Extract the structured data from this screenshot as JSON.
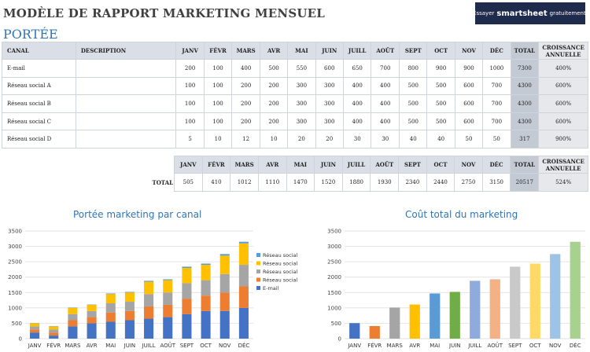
{
  "header": {
    "title": "MODÈLE DE RAPPORT MARKETING MENSUEL",
    "banner": {
      "prefix": "Essayer",
      "brand": "smartsheet",
      "suffix": "gratuitement."
    }
  },
  "section_title": "PORTÉE",
  "table": {
    "headers": [
      "CANAL",
      "DESCRIPTION",
      "JANV",
      "FÉVR",
      "MARS",
      "AVR",
      "MAI",
      "JUIN",
      "JUILL",
      "AOÛT",
      "SEPT",
      "OCT",
      "NOV",
      "DÉC",
      "TOTAL"
    ],
    "growth_header": [
      "CROISSANCE",
      "ANNUELLE"
    ],
    "rows": [
      {
        "channel": "E-mail",
        "description": "",
        "values": [
          "200",
          "100",
          "400",
          "500",
          "550",
          "600",
          "650",
          "700",
          "800",
          "900",
          "900",
          "1000"
        ],
        "total": "7300",
        "growth": "400%"
      },
      {
        "channel": "Réseau social A",
        "description": "",
        "values": [
          "100",
          "100",
          "200",
          "200",
          "300",
          "300",
          "400",
          "400",
          "500",
          "500",
          "600",
          "700"
        ],
        "total": "4300",
        "growth": "600%"
      },
      {
        "channel": "Réseau social B",
        "description": "",
        "values": [
          "100",
          "100",
          "200",
          "200",
          "300",
          "300",
          "400",
          "400",
          "500",
          "500",
          "600",
          "700"
        ],
        "total": "4300",
        "growth": "600%"
      },
      {
        "channel": "Réseau social C",
        "description": "",
        "values": [
          "100",
          "100",
          "200",
          "200",
          "300",
          "300",
          "400",
          "400",
          "500",
          "500",
          "600",
          "700"
        ],
        "total": "4300",
        "growth": "600%"
      },
      {
        "channel": "Réseau social D",
        "description": "",
        "values": [
          "5",
          "10",
          "12",
          "10",
          "20",
          "20",
          "30",
          "30",
          "40",
          "40",
          "50",
          "50"
        ],
        "total": "317",
        "growth": "900%"
      }
    ]
  },
  "totals": {
    "label": "TOTAL",
    "values": [
      "505",
      "410",
      "1012",
      "1110",
      "1470",
      "1520",
      "1880",
      "1930",
      "2340",
      "2440",
      "2750",
      "3150"
    ],
    "total": "20517",
    "growth": "524%"
  },
  "chart_data": [
    {
      "type": "bar",
      "stacked": true,
      "title": "Portée marketing par canal",
      "categories": [
        "JANV",
        "FÉVR",
        "MARS",
        "AVR",
        "MAI",
        "JUIN",
        "JUILL",
        "AOÛT",
        "SEPT",
        "OCT",
        "NOV",
        "DÉC"
      ],
      "series": [
        {
          "name": "E-mail",
          "color": "#4472c4",
          "values": [
            200,
            100,
            400,
            500,
            550,
            600,
            650,
            700,
            800,
            900,
            900,
            1000
          ]
        },
        {
          "name": "Réseau social A",
          "color": "#ed7d31",
          "values": [
            100,
            100,
            200,
            200,
            300,
            300,
            400,
            400,
            500,
            500,
            600,
            700
          ]
        },
        {
          "name": "Réseau social B",
          "color": "#a5a5a5",
          "values": [
            100,
            100,
            200,
            200,
            300,
            300,
            400,
            400,
            500,
            500,
            600,
            700
          ]
        },
        {
          "name": "Réseau social C",
          "color": "#ffc000",
          "values": [
            100,
            100,
            200,
            200,
            300,
            300,
            400,
            400,
            500,
            500,
            600,
            700
          ]
        },
        {
          "name": "Réseau social D",
          "color": "#5b9bd5",
          "values": [
            5,
            10,
            12,
            10,
            20,
            20,
            30,
            30,
            40,
            40,
            50,
            50
          ]
        }
      ],
      "ylim": [
        0,
        3500
      ],
      "yticks": [
        0,
        500,
        1000,
        1500,
        2000,
        2500,
        3000,
        3500
      ],
      "grid": true,
      "legend": "right"
    },
    {
      "type": "bar",
      "title": "Coût total du marketing",
      "categories": [
        "JANV",
        "FÉVR",
        "MARS",
        "AVR",
        "MAI",
        "JUIN",
        "JUILL",
        "AOÛT",
        "SEPT",
        "OCT",
        "NOV",
        "DÉC"
      ],
      "values": [
        505,
        410,
        1012,
        1110,
        1470,
        1520,
        1880,
        1930,
        2340,
        2440,
        2750,
        3150
      ],
      "colors": [
        "#4472c4",
        "#ed7d31",
        "#a5a5a5",
        "#ffc000",
        "#5b9bd5",
        "#70ad47",
        "#8faadc",
        "#f4b183",
        "#c9c9c9",
        "#ffd966",
        "#9dc3e6",
        "#a9d18e"
      ],
      "ylim": [
        0,
        3500
      ],
      "yticks": [
        0,
        500,
        1000,
        1500,
        2000,
        2500,
        3000,
        3500
      ],
      "grid": true
    }
  ]
}
